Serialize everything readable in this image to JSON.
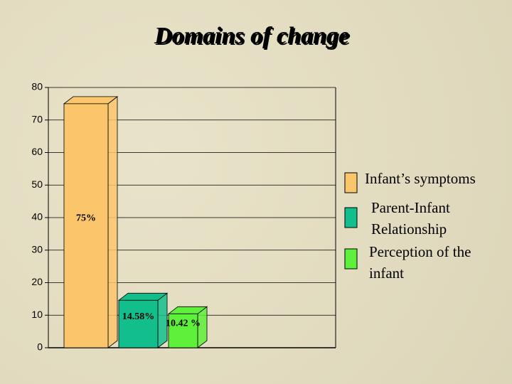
{
  "chart_data": {
    "type": "bar",
    "title": "Domains of change",
    "categories": [
      "Infant’s symptoms",
      "Parent-Infant Relationship",
      "Perception of the infant"
    ],
    "values": [
      75,
      14.58,
      10.42
    ],
    "value_labels": [
      "75%",
      "14.58%",
      "10.42 %"
    ],
    "colors": [
      "#FBC56B",
      "#12BF8C",
      "#5EF03A"
    ],
    "ylim": [
      0,
      80
    ],
    "yticks": [
      0,
      10,
      20,
      30,
      40,
      50,
      60,
      70,
      80
    ],
    "grid": true
  }
}
